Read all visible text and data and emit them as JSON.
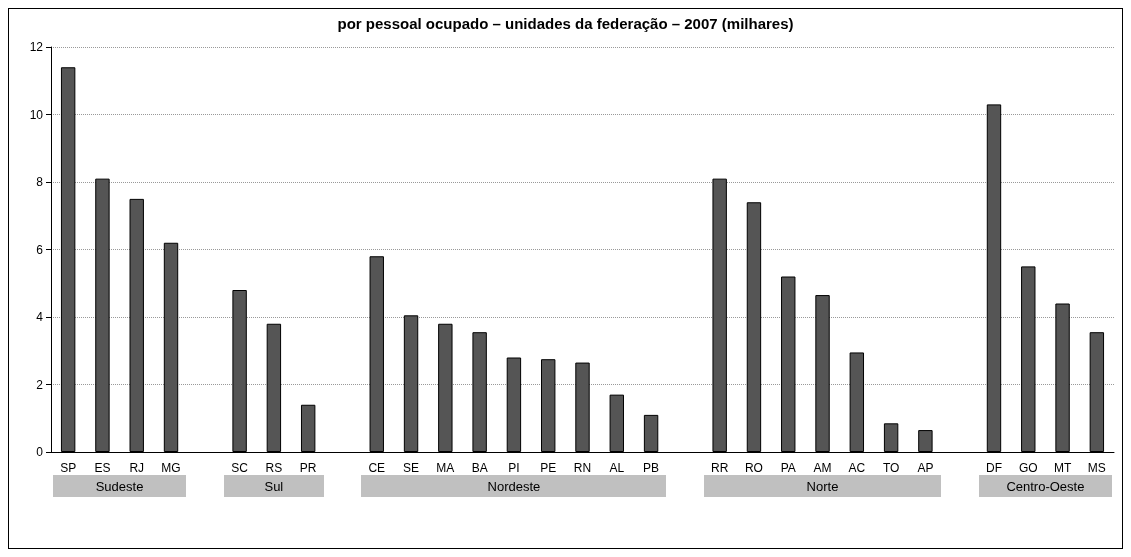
{
  "chart_data": {
    "type": "bar",
    "title": "por pessoal ocupado – unidades da federação – 2007 (milhares)",
    "categories": [
      "SP",
      "ES",
      "RJ",
      "MG",
      null,
      "SC",
      "RS",
      "PR",
      null,
      "CE",
      "SE",
      "MA",
      "BA",
      "PI",
      "PE",
      "RN",
      "AL",
      "PB",
      null,
      "RR",
      "RO",
      "PA",
      "AM",
      "AC",
      "TO",
      "AP",
      null,
      "DF",
      "GO",
      "MT",
      "MS"
    ],
    "values": [
      11.4,
      8.1,
      7.5,
      6.2,
      null,
      4.8,
      3.8,
      1.4,
      null,
      5.8,
      4.05,
      3.8,
      3.55,
      2.8,
      2.75,
      2.65,
      1.7,
      1.1,
      null,
      8.1,
      7.4,
      5.2,
      4.65,
      2.95,
      0.85,
      0.65,
      null,
      10.3,
      5.5,
      4.4,
      3.55
    ],
    "color": "#555555",
    "ylim": [
      0,
      12
    ],
    "yticks": [
      0,
      2,
      4,
      6,
      8,
      10,
      12
    ],
    "grid": "y",
    "annotations": [
      "Sudeste",
      "Sul",
      "Nordeste",
      "Norte",
      "Centro-Oeste"
    ]
  }
}
